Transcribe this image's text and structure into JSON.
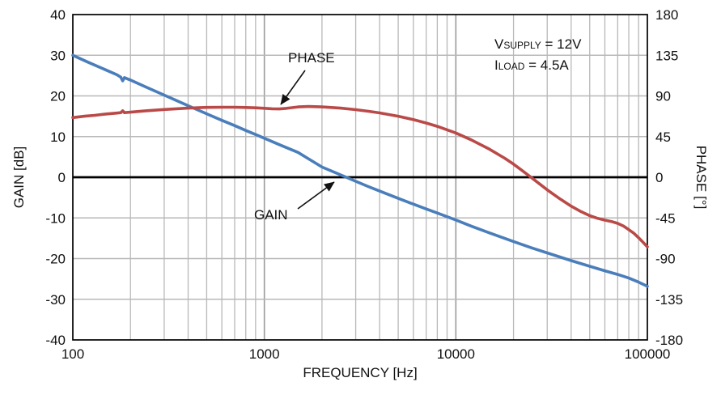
{
  "chart_data": {
    "type": "line",
    "title": "",
    "xlabel": "FREQUENCY [Hz]",
    "ylabel_left": "GAIN [dB]",
    "ylabel_right": "PHASE [°]",
    "x_scale": "log",
    "x_range": [
      100,
      100000
    ],
    "x_ticks_major": [
      100,
      1000,
      10000,
      100000
    ],
    "x_tick_labels": [
      "100",
      "1000",
      "10000",
      "100000"
    ],
    "y_left_range": [
      -40,
      40
    ],
    "y_left_ticks": [
      -40,
      -30,
      -20,
      -10,
      0,
      10,
      20,
      30,
      40
    ],
    "y_right_range": [
      -180,
      180
    ],
    "y_right_ticks": [
      -180,
      -135,
      -90,
      -45,
      0,
      45,
      90,
      135,
      180
    ],
    "grid": true,
    "zero_line": 0,
    "colors": {
      "gain": "#4a7ebb",
      "phase": "#b94a48",
      "grid_minor": "#b8b8b8",
      "grid_major": "#9a9a9a",
      "frame": "#000000"
    },
    "series": [
      {
        "name": "GAIN",
        "axis": "left",
        "color": "#4a7ebb",
        "points": [
          [
            100,
            30
          ],
          [
            120,
            28.3
          ],
          [
            150,
            26.3
          ],
          [
            170,
            25.2
          ],
          [
            178,
            24.6
          ],
          [
            182,
            23.7
          ],
          [
            186,
            24.5
          ],
          [
            200,
            23.9
          ],
          [
            240,
            22.2
          ],
          [
            300,
            20.2
          ],
          [
            400,
            17.6
          ],
          [
            500,
            15.6
          ],
          [
            600,
            14.0
          ],
          [
            700,
            12.7
          ],
          [
            800,
            11.5
          ],
          [
            900,
            10.5
          ],
          [
            1000,
            9.6
          ],
          [
            1200,
            8.0
          ],
          [
            1500,
            6.1
          ],
          [
            2000,
            2.5
          ],
          [
            2500,
            0.6
          ],
          [
            3000,
            -1.0
          ],
          [
            3500,
            -2.3
          ],
          [
            4000,
            -3.4
          ],
          [
            5000,
            -5.2
          ],
          [
            6000,
            -6.6
          ],
          [
            7000,
            -7.8
          ],
          [
            8000,
            -8.8
          ],
          [
            10000,
            -10.5
          ],
          [
            12000,
            -12.0
          ],
          [
            15000,
            -13.7
          ],
          [
            20000,
            -15.8
          ],
          [
            25000,
            -17.4
          ],
          [
            30000,
            -18.6
          ],
          [
            40000,
            -20.5
          ],
          [
            50000,
            -21.9
          ],
          [
            60000,
            -23.0
          ],
          [
            70000,
            -23.9
          ],
          [
            80000,
            -24.8
          ],
          [
            90000,
            -25.8
          ],
          [
            100000,
            -26.8
          ]
        ]
      },
      {
        "name": "PHASE",
        "axis": "right",
        "color": "#b94a48",
        "points": [
          [
            100,
            66
          ],
          [
            115,
            67.5
          ],
          [
            130,
            68.5
          ],
          [
            150,
            70
          ],
          [
            170,
            71
          ],
          [
            178,
            71.5
          ],
          [
            182,
            73.5
          ],
          [
            186,
            71.5
          ],
          [
            200,
            72
          ],
          [
            240,
            73.5
          ],
          [
            300,
            75
          ],
          [
            400,
            76.5
          ],
          [
            500,
            77.3
          ],
          [
            600,
            77.5
          ],
          [
            700,
            77.5
          ],
          [
            800,
            77.2
          ],
          [
            900,
            76.8
          ],
          [
            1000,
            76.3
          ],
          [
            1100,
            75.8
          ],
          [
            1200,
            75.6
          ],
          [
            1300,
            76.2
          ],
          [
            1500,
            77.8
          ],
          [
            1700,
            78.3
          ],
          [
            2000,
            77.8
          ],
          [
            2500,
            76.5
          ],
          [
            3000,
            74.8
          ],
          [
            3500,
            73
          ],
          [
            4000,
            71.2
          ],
          [
            5000,
            67.5
          ],
          [
            6000,
            63.8
          ],
          [
            7000,
            60
          ],
          [
            8000,
            56.3
          ],
          [
            10000,
            49
          ],
          [
            12000,
            41.5
          ],
          [
            15000,
            31
          ],
          [
            18000,
            21
          ],
          [
            20000,
            14.5
          ],
          [
            22000,
            8
          ],
          [
            25000,
            -1
          ],
          [
            30000,
            -14
          ],
          [
            35000,
            -24
          ],
          [
            40000,
            -32
          ],
          [
            45000,
            -38
          ],
          [
            50000,
            -42.5
          ],
          [
            55000,
            -45.5
          ],
          [
            60000,
            -47.5
          ],
          [
            65000,
            -49
          ],
          [
            70000,
            -51
          ],
          [
            75000,
            -54
          ],
          [
            80000,
            -58
          ],
          [
            85000,
            -62
          ],
          [
            90000,
            -67
          ],
          [
            95000,
            -72
          ],
          [
            100000,
            -77
          ]
        ]
      }
    ],
    "annotations": {
      "phase_label": {
        "text": "PHASE",
        "arrow": [
          377,
          87,
          347,
          129
        ]
      },
      "gain_label": {
        "text": "GAIN",
        "arrow": [
          368,
          258,
          413,
          225
        ]
      },
      "conditions": [
        {
          "main": "V",
          "sub": "SUPPLY",
          "rest": " = 12V"
        },
        {
          "main": "I",
          "sub": "LOAD",
          "rest": " = 4.5A"
        }
      ]
    }
  }
}
